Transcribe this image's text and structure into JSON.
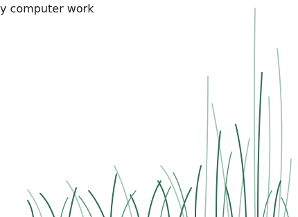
{
  "text": "y computer work"
}
